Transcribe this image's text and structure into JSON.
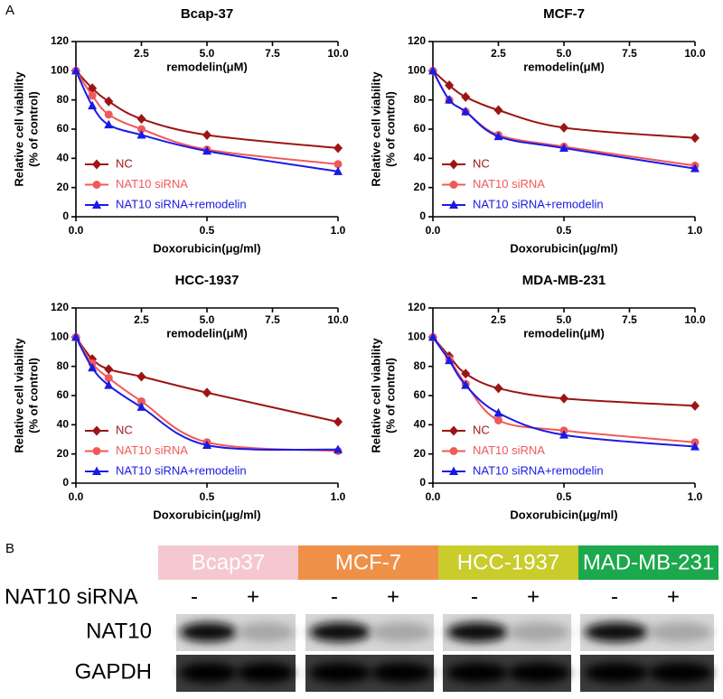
{
  "panel_labels": [
    "A",
    "B"
  ],
  "chart_data": [
    {
      "type": "line",
      "title": "Bcap-37",
      "xlabel": "Doxorubicin(μg/ml)",
      "ylabel": [
        "Relative cell viability",
        "(% of control)"
      ],
      "x2label": "remodelin(μM)",
      "x": [
        0,
        0.0625,
        0.125,
        0.25,
        0.5,
        1.0
      ],
      "xlim": [
        0,
        1
      ],
      "xticks": [
        {
          "value": 0,
          "label": "0.0"
        },
        0.5,
        {
          "value": 1,
          "label": "1.0"
        }
      ],
      "x2lim": [
        0,
        10
      ],
      "x2ticks": [
        2.5,
        {
          "value": 5,
          "label": "5.0"
        },
        7.5,
        {
          "value": 10,
          "label": "10.0"
        }
      ],
      "ylim": [
        0,
        120
      ],
      "yticks": [
        0,
        20,
        40,
        60,
        80,
        100,
        120
      ],
      "legend": "lower left",
      "series": [
        {
          "name": "NC",
          "color": "#9c1414",
          "marker": "diamond",
          "values": [
            100,
            88,
            79,
            67,
            56,
            47
          ]
        },
        {
          "name": "NAT10 siRNA",
          "color": "#f05a5a",
          "marker": "circle",
          "values": [
            100,
            83,
            70,
            60,
            46,
            36
          ]
        },
        {
          "name": "NAT10 siRNA+remodelin",
          "color": "#1a1ae6",
          "marker": "triangle",
          "values": [
            100,
            76,
            63,
            56,
            45,
            31
          ]
        }
      ]
    },
    {
      "type": "line",
      "title": "MCF-7",
      "xlabel": "Doxorubicin(μg/ml)",
      "ylabel": [
        "Relative cell viability",
        "(% of control)"
      ],
      "x2label": "remodelin(μM)",
      "x": [
        0,
        0.0625,
        0.125,
        0.25,
        0.5,
        1.0
      ],
      "xlim": [
        0,
        1
      ],
      "xticks": [
        {
          "value": 0,
          "label": "0.0"
        },
        0.5,
        {
          "value": 1,
          "label": "1.0"
        }
      ],
      "x2lim": [
        0,
        10
      ],
      "x2ticks": [
        2.5,
        {
          "value": 5,
          "label": "5.0"
        },
        7.5,
        {
          "value": 10,
          "label": "10.0"
        }
      ],
      "ylim": [
        0,
        120
      ],
      "yticks": [
        0,
        20,
        40,
        60,
        80,
        100,
        120
      ],
      "legend": "lower left",
      "series": [
        {
          "name": "NC",
          "color": "#9c1414",
          "marker": "diamond",
          "values": [
            100,
            90,
            82,
            73,
            61,
            54
          ]
        },
        {
          "name": "NAT10 siRNA",
          "color": "#f05a5a",
          "marker": "circle",
          "values": [
            100,
            80,
            72,
            56,
            48,
            35
          ]
        },
        {
          "name": "NAT10 siRNA+remodelin",
          "color": "#1a1ae6",
          "marker": "triangle",
          "values": [
            100,
            80,
            72,
            55,
            47,
            33
          ]
        }
      ]
    },
    {
      "type": "line",
      "title": "HCC-1937",
      "xlabel": "Doxorubicin(μg/ml)",
      "ylabel": [
        "Relative cell viability",
        "(% of control)"
      ],
      "x2label": "remodelin(μM)",
      "x": [
        0,
        0.0625,
        0.125,
        0.25,
        0.5,
        1.0
      ],
      "xlim": [
        0,
        1
      ],
      "xticks": [
        {
          "value": 0,
          "label": "0.0"
        },
        0.5,
        {
          "value": 1,
          "label": "1.0"
        }
      ],
      "x2lim": [
        0,
        10
      ],
      "x2ticks": [
        2.5,
        {
          "value": 5,
          "label": "5.0"
        },
        7.5,
        {
          "value": 10,
          "label": "10.0"
        }
      ],
      "ylim": [
        0,
        120
      ],
      "yticks": [
        0,
        20,
        40,
        60,
        80,
        100,
        120
      ],
      "legend": "lower left",
      "series": [
        {
          "name": "NC",
          "color": "#9c1414",
          "marker": "diamond",
          "values": [
            100,
            85,
            78,
            73,
            62,
            42
          ]
        },
        {
          "name": "NAT10 siRNA",
          "color": "#f05a5a",
          "marker": "circle",
          "values": [
            100,
            82,
            72,
            56,
            28,
            22
          ]
        },
        {
          "name": "NAT10 siRNA+remodelin",
          "color": "#1a1ae6",
          "marker": "triangle",
          "values": [
            100,
            79,
            67,
            52,
            26,
            23
          ]
        }
      ]
    },
    {
      "type": "line",
      "title": "MDA-MB-231",
      "xlabel": "Doxorubicin(μg/ml)",
      "ylabel": [
        "Relative cell viability",
        "(% of control)"
      ],
      "x2label": "remodelin(μM)",
      "x": [
        0,
        0.0625,
        0.125,
        0.25,
        0.5,
        1.0
      ],
      "xlim": [
        0,
        1
      ],
      "xticks": [
        {
          "value": 0,
          "label": "0.0"
        },
        0.5,
        {
          "value": 1,
          "label": "1.0"
        }
      ],
      "x2lim": [
        0,
        10
      ],
      "x2ticks": [
        2.5,
        {
          "value": 5,
          "label": "5.0"
        },
        7.5,
        {
          "value": 10,
          "label": "10.0"
        }
      ],
      "ylim": [
        0,
        120
      ],
      "yticks": [
        0,
        20,
        40,
        60,
        80,
        100,
        120
      ],
      "legend": "lower left",
      "series": [
        {
          "name": "NC",
          "color": "#9c1414",
          "marker": "diamond",
          "values": [
            100,
            87,
            75,
            65,
            58,
            53
          ]
        },
        {
          "name": "NAT10 siRNA",
          "color": "#f05a5a",
          "marker": "circle",
          "values": [
            100,
            85,
            68,
            43,
            36,
            28
          ]
        },
        {
          "name": "NAT10 siRNA+remodelin",
          "color": "#1a1ae6",
          "marker": "triangle",
          "values": [
            100,
            84,
            67,
            48,
            33,
            25
          ]
        }
      ]
    }
  ],
  "blot": {
    "cell_lines": [
      {
        "name": "Bcap37",
        "color": "#f5c8d0"
      },
      {
        "name": "MCF-7",
        "color": "#ef9049"
      },
      {
        "name": "HCC-1937",
        "color": "#c9cc2a"
      },
      {
        "name": "MAD-MB-231",
        "color": "#1ca84c"
      }
    ],
    "treatment_row": "NAT10 siRNA",
    "treatments": [
      "-",
      "+"
    ],
    "row_labels": [
      "NAT10",
      "GAPDH"
    ]
  }
}
